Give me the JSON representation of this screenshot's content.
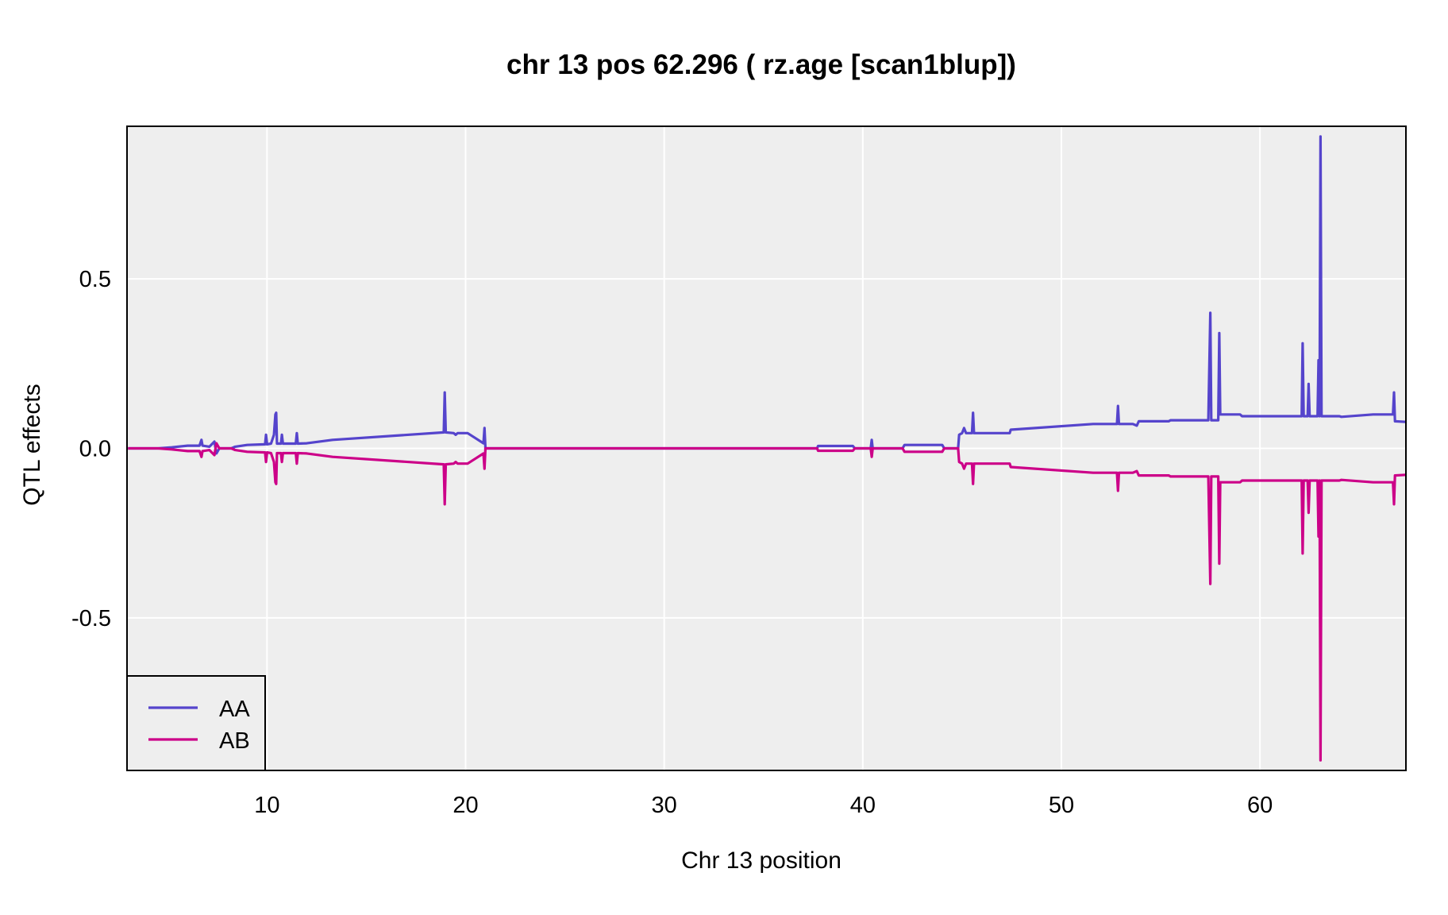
{
  "chart_data": {
    "type": "line",
    "title": "chr 13 pos 62.296 ( rz.age  [scan1blup])",
    "xlabel": "Chr 13 position",
    "ylabel": "QTL effects",
    "xlim": [
      2.95,
      67.35
    ],
    "ylim": [
      -0.95,
      0.95
    ],
    "xticks": [
      10,
      20,
      30,
      40,
      50,
      60
    ],
    "yticks": [
      -0.5,
      0.0,
      0.5
    ],
    "ytick_labels": [
      "-0.5",
      "0.0",
      "0.5"
    ],
    "grid": true,
    "legend_position": "bottom-left",
    "background": "#eeeeee",
    "series": [
      {
        "name": "AA",
        "color": "#5544cc",
        "points": [
          [
            3.0,
            0.0
          ],
          [
            4.5,
            0.0
          ],
          [
            5.2,
            0.003
          ],
          [
            6.0,
            0.008
          ],
          [
            6.6,
            0.008
          ],
          [
            6.7,
            0.025
          ],
          [
            6.75,
            0.008
          ],
          [
            7.1,
            0.005
          ],
          [
            7.35,
            0.02
          ],
          [
            7.45,
            -0.015
          ],
          [
            7.6,
            0.0
          ],
          [
            8.2,
            0.0
          ],
          [
            8.4,
            0.005
          ],
          [
            9.0,
            0.01
          ],
          [
            9.9,
            0.012
          ],
          [
            9.95,
            0.04
          ],
          [
            10.0,
            0.012
          ],
          [
            10.2,
            0.014
          ],
          [
            10.35,
            0.04
          ],
          [
            10.42,
            0.1
          ],
          [
            10.46,
            0.105
          ],
          [
            10.5,
            0.014
          ],
          [
            10.7,
            0.014
          ],
          [
            10.75,
            0.04
          ],
          [
            10.8,
            0.014
          ],
          [
            11.45,
            0.014
          ],
          [
            11.5,
            0.045
          ],
          [
            11.55,
            0.014
          ],
          [
            12.0,
            0.015
          ],
          [
            13.3,
            0.025
          ],
          [
            18.9,
            0.047
          ],
          [
            18.95,
            0.165
          ],
          [
            19.0,
            0.047
          ],
          [
            19.4,
            0.045
          ],
          [
            19.5,
            0.04
          ],
          [
            19.6,
            0.045
          ],
          [
            20.1,
            0.045
          ],
          [
            20.5,
            0.03
          ],
          [
            20.9,
            0.015
          ],
          [
            20.95,
            0.06
          ],
          [
            21.0,
            0.0
          ],
          [
            37.7,
            0.0
          ],
          [
            37.75,
            0.007
          ],
          [
            39.5,
            0.007
          ],
          [
            39.6,
            0.0
          ],
          [
            40.4,
            0.0
          ],
          [
            40.45,
            0.025
          ],
          [
            40.5,
            0.0
          ],
          [
            42.0,
            0.0
          ],
          [
            42.1,
            0.01
          ],
          [
            44.0,
            0.01
          ],
          [
            44.1,
            0.0
          ],
          [
            44.8,
            0.0
          ],
          [
            44.85,
            0.04
          ],
          [
            45.0,
            0.045
          ],
          [
            45.1,
            0.06
          ],
          [
            45.2,
            0.045
          ],
          [
            45.5,
            0.045
          ],
          [
            45.55,
            0.105
          ],
          [
            45.6,
            0.045
          ],
          [
            47.4,
            0.045
          ],
          [
            47.45,
            0.055
          ],
          [
            51.6,
            0.072
          ],
          [
            52.8,
            0.072
          ],
          [
            52.85,
            0.125
          ],
          [
            52.9,
            0.072
          ],
          [
            53.6,
            0.072
          ],
          [
            53.8,
            0.067
          ],
          [
            53.9,
            0.08
          ],
          [
            55.4,
            0.08
          ],
          [
            55.5,
            0.083
          ],
          [
            57.4,
            0.083
          ],
          [
            57.5,
            0.4
          ],
          [
            57.55,
            0.083
          ],
          [
            57.9,
            0.083
          ],
          [
            57.95,
            0.34
          ],
          [
            58.0,
            0.1
          ],
          [
            59.0,
            0.1
          ],
          [
            59.1,
            0.095
          ],
          [
            62.1,
            0.095
          ],
          [
            62.15,
            0.31
          ],
          [
            62.2,
            0.095
          ],
          [
            62.4,
            0.095
          ],
          [
            62.45,
            0.19
          ],
          [
            62.5,
            0.095
          ],
          [
            62.9,
            0.095
          ],
          [
            62.95,
            0.26
          ],
          [
            63.0,
            0.095
          ],
          [
            63.05,
            0.92
          ],
          [
            63.1,
            0.095
          ],
          [
            64.0,
            0.095
          ],
          [
            64.1,
            0.093
          ],
          [
            65.7,
            0.1
          ],
          [
            66.7,
            0.1
          ],
          [
            66.75,
            0.165
          ],
          [
            66.8,
            0.08
          ],
          [
            67.35,
            0.078
          ]
        ]
      },
      {
        "name": "AB",
        "color": "#cc0088",
        "points": [
          [
            3.0,
            0.0
          ],
          [
            4.5,
            0.0
          ],
          [
            5.2,
            -0.003
          ],
          [
            6.0,
            -0.008
          ],
          [
            6.6,
            -0.008
          ],
          [
            6.7,
            -0.025
          ],
          [
            6.75,
            -0.008
          ],
          [
            7.1,
            -0.005
          ],
          [
            7.35,
            -0.02
          ],
          [
            7.45,
            0.015
          ],
          [
            7.6,
            0.0
          ],
          [
            8.2,
            0.0
          ],
          [
            8.4,
            -0.005
          ],
          [
            9.0,
            -0.01
          ],
          [
            9.9,
            -0.012
          ],
          [
            9.95,
            -0.04
          ],
          [
            10.0,
            -0.012
          ],
          [
            10.2,
            -0.014
          ],
          [
            10.35,
            -0.04
          ],
          [
            10.42,
            -0.1
          ],
          [
            10.46,
            -0.105
          ],
          [
            10.5,
            -0.014
          ],
          [
            10.7,
            -0.014
          ],
          [
            10.75,
            -0.04
          ],
          [
            10.8,
            -0.014
          ],
          [
            11.45,
            -0.014
          ],
          [
            11.5,
            -0.045
          ],
          [
            11.55,
            -0.014
          ],
          [
            12.0,
            -0.015
          ],
          [
            13.3,
            -0.025
          ],
          [
            18.9,
            -0.047
          ],
          [
            18.95,
            -0.165
          ],
          [
            19.0,
            -0.047
          ],
          [
            19.4,
            -0.045
          ],
          [
            19.5,
            -0.04
          ],
          [
            19.6,
            -0.045
          ],
          [
            20.1,
            -0.045
          ],
          [
            20.5,
            -0.03
          ],
          [
            20.9,
            -0.015
          ],
          [
            20.95,
            -0.06
          ],
          [
            21.0,
            0.0
          ],
          [
            37.7,
            0.0
          ],
          [
            37.75,
            -0.007
          ],
          [
            39.5,
            -0.007
          ],
          [
            39.6,
            0.0
          ],
          [
            40.4,
            0.0
          ],
          [
            40.45,
            -0.025
          ],
          [
            40.5,
            0.0
          ],
          [
            42.0,
            0.0
          ],
          [
            42.1,
            -0.01
          ],
          [
            44.0,
            -0.01
          ],
          [
            44.1,
            0.0
          ],
          [
            44.8,
            0.0
          ],
          [
            44.85,
            -0.04
          ],
          [
            45.0,
            -0.045
          ],
          [
            45.1,
            -0.06
          ],
          [
            45.2,
            -0.045
          ],
          [
            45.5,
            -0.045
          ],
          [
            45.55,
            -0.105
          ],
          [
            45.6,
            -0.045
          ],
          [
            47.4,
            -0.045
          ],
          [
            47.45,
            -0.055
          ],
          [
            51.6,
            -0.072
          ],
          [
            52.8,
            -0.072
          ],
          [
            52.85,
            -0.125
          ],
          [
            52.9,
            -0.072
          ],
          [
            53.6,
            -0.072
          ],
          [
            53.8,
            -0.067
          ],
          [
            53.9,
            -0.08
          ],
          [
            55.4,
            -0.08
          ],
          [
            55.5,
            -0.083
          ],
          [
            57.4,
            -0.083
          ],
          [
            57.5,
            -0.4
          ],
          [
            57.55,
            -0.083
          ],
          [
            57.9,
            -0.083
          ],
          [
            57.95,
            -0.34
          ],
          [
            58.0,
            -0.1
          ],
          [
            59.0,
            -0.1
          ],
          [
            59.1,
            -0.095
          ],
          [
            62.1,
            -0.095
          ],
          [
            62.15,
            -0.31
          ],
          [
            62.2,
            -0.095
          ],
          [
            62.4,
            -0.095
          ],
          [
            62.45,
            -0.19
          ],
          [
            62.5,
            -0.095
          ],
          [
            62.9,
            -0.095
          ],
          [
            62.95,
            -0.26
          ],
          [
            63.0,
            -0.095
          ],
          [
            63.05,
            -0.92
          ],
          [
            63.1,
            -0.095
          ],
          [
            64.0,
            -0.095
          ],
          [
            64.1,
            -0.093
          ],
          [
            65.7,
            -0.1
          ],
          [
            66.7,
            -0.1
          ],
          [
            66.75,
            -0.165
          ],
          [
            66.8,
            -0.08
          ],
          [
            67.35,
            -0.078
          ]
        ]
      }
    ]
  }
}
